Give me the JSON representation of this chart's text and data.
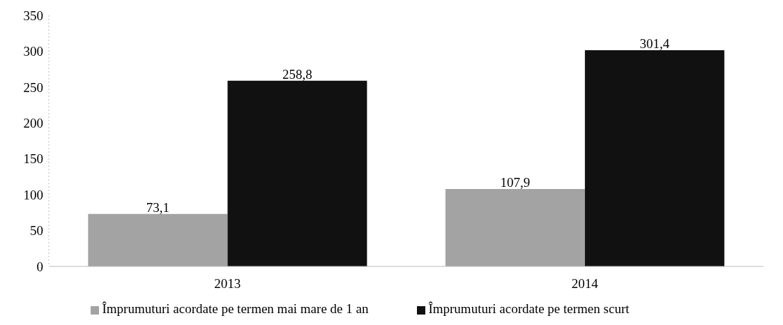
{
  "chart_data": {
    "type": "bar",
    "categories": [
      "2013",
      "2014"
    ],
    "series": [
      {
        "name": "Împrumuturi acordate pe termen mai mare de 1 an",
        "color": "#a3a3a3",
        "values": [
          73.1,
          107.9
        ],
        "value_labels": [
          "73,1",
          "107,9"
        ]
      },
      {
        "name": "Împrumuturi acordate pe termen scurt",
        "color": "#111111",
        "values": [
          258.8,
          301.4
        ],
        "value_labels": [
          "258,8",
          "301,4"
        ]
      }
    ],
    "ylim": [
      0,
      350
    ],
    "yticks": [
      0,
      50,
      100,
      150,
      200,
      250,
      300,
      350
    ],
    "grid": false,
    "legend": "bottom"
  }
}
